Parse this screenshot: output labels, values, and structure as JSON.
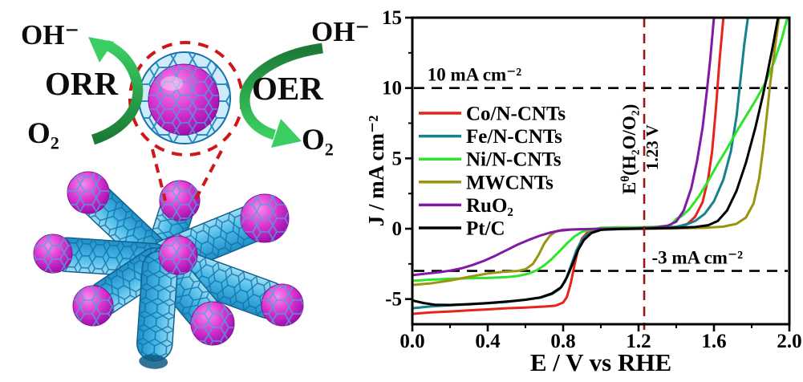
{
  "figure": {
    "background": "#ffffff"
  },
  "left_panel": {
    "labels": {
      "oh_left": "OH⁻",
      "orr": "ORR",
      "o2_left": "O₂",
      "oh_right": "OH⁻",
      "oer": "OER",
      "o2_right": "O₂"
    },
    "colors": {
      "tube_fill": "#49b9e6",
      "tube_mesh": "#0f6fa8",
      "particle": "#c521c2",
      "arrow_green_dark": "#1b7a36",
      "arrow_green_bright": "#3bcf63",
      "magnifier_dash_red": "#cf1717"
    }
  },
  "chart_data": {
    "type": "line",
    "title": "",
    "xlabel": "E / V vs RHE",
    "ylabel": "J / mA cm⁻²",
    "xlim": [
      0.0,
      2.0
    ],
    "ylim": [
      -6.8,
      15
    ],
    "grid": false,
    "legend_position": "upper-left-inside",
    "x_ticks": {
      "major": [
        0.0,
        0.4,
        0.8,
        1.2,
        1.6,
        2.0
      ],
      "labels": [
        "0.0",
        "0.4",
        "0.8",
        "1.2",
        "1.6",
        "2.0"
      ],
      "minor": [
        0.2,
        0.6,
        1.0,
        1.4,
        1.8
      ]
    },
    "y_ticks": {
      "major": [
        15,
        10,
        5,
        0,
        -5
      ],
      "labels": [
        "15",
        "10",
        "5",
        "0",
        "-5"
      ],
      "minor": [
        12.5,
        7.5,
        2.5,
        -2.5
      ]
    },
    "annotations": {
      "hlines": [
        {
          "y": 10,
          "label": "10 mA cm⁻²",
          "label_x": 0.08
        },
        {
          "y": -3,
          "label": "-3 mA cm⁻²",
          "label_x": 1.27
        }
      ],
      "vline": {
        "x": 1.23,
        "color": "#9b1717",
        "label_base": "E",
        "label_sup": "θ",
        "label_rest": "(H₂O/O₂)",
        "value_label": "1.23 V"
      }
    },
    "series": [
      {
        "name": "Co/N-CNTs",
        "color": "#e8231a",
        "points": [
          [
            0,
            -6.05
          ],
          [
            0.1,
            -5.95
          ],
          [
            0.2,
            -5.88
          ],
          [
            0.3,
            -5.8
          ],
          [
            0.4,
            -5.73
          ],
          [
            0.5,
            -5.65
          ],
          [
            0.6,
            -5.6
          ],
          [
            0.7,
            -5.53
          ],
          [
            0.76,
            -5.47
          ],
          [
            0.8,
            -5.25
          ],
          [
            0.82,
            -4.85
          ],
          [
            0.84,
            -3.9
          ],
          [
            0.86,
            -2.6
          ],
          [
            0.88,
            -1.4
          ],
          [
            0.9,
            -0.7
          ],
          [
            0.93,
            -0.25
          ],
          [
            0.96,
            -0.08
          ],
          [
            1.0,
            -0.03
          ],
          [
            1.1,
            0
          ],
          [
            1.2,
            0.03
          ],
          [
            1.3,
            0.06
          ],
          [
            1.4,
            0.12
          ],
          [
            1.46,
            0.35
          ],
          [
            1.5,
            0.85
          ],
          [
            1.54,
            1.9
          ],
          [
            1.57,
            3.6
          ],
          [
            1.59,
            5.5
          ],
          [
            1.61,
            8.5
          ],
          [
            1.63,
            12
          ],
          [
            1.65,
            15
          ]
        ]
      },
      {
        "name": "Fe/N-CNTs",
        "color": "#17808d",
        "points": [
          [
            0,
            -5.65
          ],
          [
            0.1,
            -5.52
          ],
          [
            0.2,
            -5.44
          ],
          [
            0.3,
            -5.37
          ],
          [
            0.4,
            -5.3
          ],
          [
            0.5,
            -5.2
          ],
          [
            0.6,
            -5.05
          ],
          [
            0.68,
            -4.9
          ],
          [
            0.74,
            -4.65
          ],
          [
            0.78,
            -4.3
          ],
          [
            0.81,
            -3.75
          ],
          [
            0.84,
            -2.7
          ],
          [
            0.87,
            -1.55
          ],
          [
            0.9,
            -0.8
          ],
          [
            0.93,
            -0.38
          ],
          [
            0.97,
            -0.14
          ],
          [
            1.02,
            -0.04
          ],
          [
            1.1,
            0
          ],
          [
            1.2,
            0.02
          ],
          [
            1.3,
            0.05
          ],
          [
            1.4,
            0.14
          ],
          [
            1.45,
            0.28
          ],
          [
            1.5,
            0.55
          ],
          [
            1.55,
            1.05
          ],
          [
            1.6,
            1.95
          ],
          [
            1.65,
            3.5
          ],
          [
            1.69,
            5.5
          ],
          [
            1.72,
            8
          ],
          [
            1.74,
            10.5
          ],
          [
            1.76,
            13
          ],
          [
            1.78,
            15
          ]
        ]
      },
      {
        "name": "Ni/N-CNTs",
        "color": "#2ee52b",
        "points": [
          [
            0,
            -3.7
          ],
          [
            0.1,
            -3.62
          ],
          [
            0.2,
            -3.56
          ],
          [
            0.3,
            -3.52
          ],
          [
            0.4,
            -3.5
          ],
          [
            0.5,
            -3.44
          ],
          [
            0.56,
            -3.36
          ],
          [
            0.62,
            -3.18
          ],
          [
            0.66,
            -2.95
          ],
          [
            0.7,
            -2.6
          ],
          [
            0.74,
            -2.15
          ],
          [
            0.78,
            -1.6
          ],
          [
            0.82,
            -1.05
          ],
          [
            0.86,
            -0.55
          ],
          [
            0.9,
            -0.22
          ],
          [
            0.95,
            -0.06
          ],
          [
            1.0,
            0.06
          ],
          [
            1.1,
            0.1
          ],
          [
            1.2,
            0.1
          ],
          [
            1.3,
            0.14
          ],
          [
            1.37,
            0.25
          ],
          [
            1.4,
            0.7
          ],
          [
            1.43,
            0.9
          ],
          [
            1.47,
            1.4
          ],
          [
            1.52,
            2.3
          ],
          [
            1.57,
            3.4
          ],
          [
            1.62,
            4.6
          ],
          [
            1.67,
            5.7
          ],
          [
            1.72,
            6.9
          ],
          [
            1.77,
            8
          ],
          [
            1.82,
            9.1
          ],
          [
            1.87,
            10.3
          ],
          [
            1.92,
            11.9
          ],
          [
            1.96,
            13.5
          ],
          [
            1.99,
            15
          ]
        ]
      },
      {
        "name": "MWCNTs",
        "color": "#9a9410",
        "points": [
          [
            0,
            -4.0
          ],
          [
            0.1,
            -3.88
          ],
          [
            0.2,
            -3.68
          ],
          [
            0.3,
            -3.42
          ],
          [
            0.4,
            -3.18
          ],
          [
            0.48,
            -3.07
          ],
          [
            0.56,
            -3.0
          ],
          [
            0.6,
            -2.88
          ],
          [
            0.64,
            -2.5
          ],
          [
            0.67,
            -1.85
          ],
          [
            0.7,
            -1.05
          ],
          [
            0.73,
            -0.5
          ],
          [
            0.76,
            -0.2
          ],
          [
            0.8,
            -0.07
          ],
          [
            0.9,
            -0.03
          ],
          [
            1.0,
            -0.02
          ],
          [
            1.2,
            0
          ],
          [
            1.4,
            0.02
          ],
          [
            1.55,
            0.06
          ],
          [
            1.65,
            0.15
          ],
          [
            1.72,
            0.35
          ],
          [
            1.77,
            0.8
          ],
          [
            1.81,
            1.8
          ],
          [
            1.84,
            3.6
          ],
          [
            1.86,
            5.6
          ],
          [
            1.88,
            8
          ],
          [
            1.9,
            10.5
          ],
          [
            1.92,
            12.5
          ],
          [
            1.945,
            15
          ]
        ]
      },
      {
        "name": "RuO₂",
        "color": "#8019a6",
        "points": [
          [
            0,
            -3.3
          ],
          [
            0.08,
            -3.18
          ],
          [
            0.15,
            -3.08
          ],
          [
            0.2,
            -2.98
          ],
          [
            0.26,
            -2.82
          ],
          [
            0.32,
            -2.58
          ],
          [
            0.38,
            -2.28
          ],
          [
            0.44,
            -1.92
          ],
          [
            0.5,
            -1.52
          ],
          [
            0.56,
            -1.12
          ],
          [
            0.62,
            -0.78
          ],
          [
            0.68,
            -0.48
          ],
          [
            0.73,
            -0.28
          ],
          [
            0.78,
            -0.14
          ],
          [
            0.84,
            -0.06
          ],
          [
            0.92,
            -0.03
          ],
          [
            1.0,
            0
          ],
          [
            1.15,
            0.02
          ],
          [
            1.28,
            0.08
          ],
          [
            1.35,
            0.18
          ],
          [
            1.4,
            0.5
          ],
          [
            1.44,
            1.3
          ],
          [
            1.48,
            2.9
          ],
          [
            1.51,
            4.8
          ],
          [
            1.54,
            7.2
          ],
          [
            1.56,
            9.5
          ],
          [
            1.58,
            12
          ],
          [
            1.6,
            15
          ]
        ]
      },
      {
        "name": "Pt/C",
        "color": "#000000",
        "points": [
          [
            0,
            -5.1
          ],
          [
            0.06,
            -5.28
          ],
          [
            0.12,
            -5.4
          ],
          [
            0.2,
            -5.42
          ],
          [
            0.3,
            -5.36
          ],
          [
            0.4,
            -5.28
          ],
          [
            0.5,
            -5.18
          ],
          [
            0.6,
            -5.05
          ],
          [
            0.68,
            -4.88
          ],
          [
            0.74,
            -4.6
          ],
          [
            0.79,
            -4.15
          ],
          [
            0.82,
            -3.45
          ],
          [
            0.85,
            -2.5
          ],
          [
            0.88,
            -1.5
          ],
          [
            0.91,
            -0.8
          ],
          [
            0.95,
            -0.3
          ],
          [
            1.0,
            -0.08
          ],
          [
            1.1,
            -0.02
          ],
          [
            1.2,
            0
          ],
          [
            1.3,
            0.03
          ],
          [
            1.4,
            0.06
          ],
          [
            1.5,
            0.12
          ],
          [
            1.57,
            0.25
          ],
          [
            1.62,
            0.55
          ],
          [
            1.67,
            1.3
          ],
          [
            1.72,
            2.7
          ],
          [
            1.77,
            4.7
          ],
          [
            1.82,
            7.2
          ],
          [
            1.86,
            9.5
          ],
          [
            1.88,
            10.8
          ],
          [
            1.91,
            12.8
          ],
          [
            1.94,
            15
          ]
        ]
      }
    ]
  }
}
